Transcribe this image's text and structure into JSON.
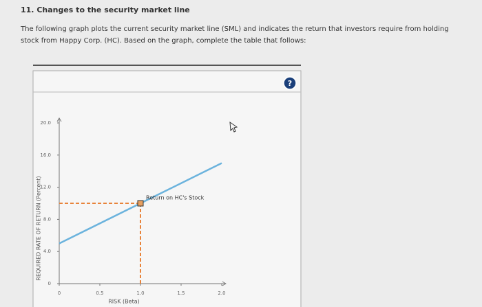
{
  "header": {
    "title": "11. Changes to the security market line",
    "instructions": "The following graph plots the current security market line (SML) and indicates the return that investors require from holding stock from Happy Corp. (HC). Based on the graph, complete the table that follows:"
  },
  "help_button": {
    "label": "?"
  },
  "chart_data": {
    "type": "line",
    "xlabel": "RISK (Beta)",
    "ylabel": "REQUIRED RATE OF RETURN (Percent)",
    "x": [
      0,
      1.0,
      2.0
    ],
    "values": [
      5.0,
      10.0,
      15.0
    ],
    "color": "#6bb3dd",
    "point": {
      "x": 1.0,
      "y": 10.0,
      "label": "Return on HC's Stock",
      "color": "#e8a060"
    },
    "xlim": [
      0,
      2.05
    ],
    "ylim": [
      0,
      20.6
    ],
    "xticks": [
      0,
      0.5,
      {
        "value": 1.0,
        "label": "1.0"
      },
      1.5,
      {
        "value": 2.0,
        "label": "2.0"
      }
    ],
    "yticks": [
      0,
      {
        "value": 4,
        "label": "4.0"
      },
      {
        "value": 8,
        "label": "8.0"
      },
      {
        "value": 12,
        "label": "12.0"
      },
      {
        "value": 16,
        "label": "16.0"
      },
      {
        "value": 20,
        "label": "20.0"
      }
    ]
  }
}
